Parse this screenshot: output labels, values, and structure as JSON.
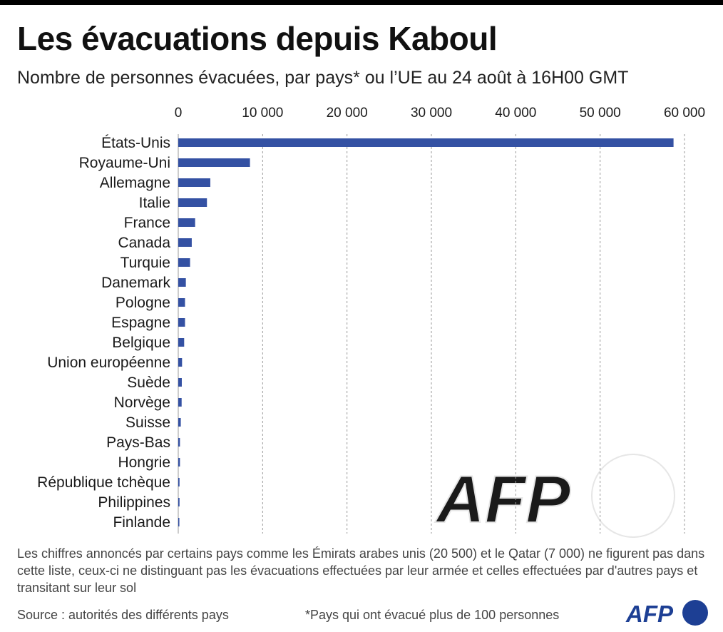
{
  "header": {
    "title": "Les évacuations depuis Kaboul",
    "subtitle": "Nombre de personnes évacuées, par pays* ou l’UE au 24 août à 16H00 GMT"
  },
  "chart_data": {
    "type": "bar",
    "orientation": "horizontal",
    "title": "Les évacuations depuis Kaboul",
    "subtitle": "Nombre de personnes évacuées, par pays* ou l’UE au 24 août à 16H00 GMT",
    "categories": [
      "États-Unis",
      "Royaume-Uni",
      "Allemagne",
      "Italie",
      "France",
      "Canada",
      "Turquie",
      "Danemark",
      "Pologne",
      "Espagne",
      "Belgique",
      "Union européenne",
      "Suède",
      "Norvège",
      "Suisse",
      "Pays-Bas",
      "Hongrie",
      "République tchèque",
      "Philippines",
      "Finlande"
    ],
    "values": [
      58700,
      8500,
      3800,
      3400,
      2000,
      1600,
      1400,
      900,
      800,
      800,
      700,
      450,
      420,
      400,
      300,
      200,
      200,
      150,
      150,
      130
    ],
    "xticks": [
      0,
      10000,
      20000,
      30000,
      40000,
      50000,
      60000
    ],
    "xtick_labels": [
      "0",
      "10 000",
      "20 000",
      "30 000",
      "40 000",
      "50 000",
      "60 000"
    ],
    "xlim": [
      0,
      60000
    ],
    "xaxis_position": "top",
    "grid": "vertical dashed",
    "legend": "none",
    "bar_color": "#3451a3",
    "grid_color": "#999999"
  },
  "watermark": "AFP",
  "footer": {
    "note": "Les chiffres annoncés par certains pays comme les Émirats arabes unis (20 500) et le Qatar (7 000) ne figurent pas dans cette liste, ceux-ci ne distinguant pas les évacuations effectuées par leur armée et celles effectuées par d'autres pays et transitant sur leur sol",
    "source": "Source : autorités des différents pays",
    "footnote": "*Pays qui ont évacué plus de 100 personnes",
    "logo_text": "AFP",
    "logo_color": "#1d3f94"
  }
}
